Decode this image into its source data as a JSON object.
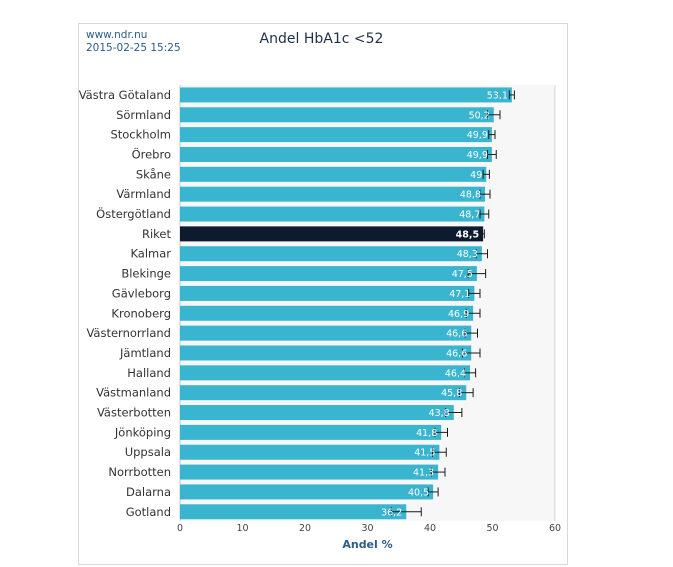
{
  "header": {
    "source": "www.ndr.nu",
    "date": "2015-02-25 15:25"
  },
  "colors": {
    "bar": "#3ab5d0",
    "highlight": "#0d1b2e",
    "label_text": "#ffffff",
    "axis_text": "#333333",
    "axis_title": "#2b5d8c",
    "error_bar": "#1a1a1a",
    "plot_background": "#f7f7f7"
  },
  "chart_data": {
    "type": "bar",
    "orientation": "horizontal",
    "title": "Andel HbA1c <52",
    "xlabel": "Andel %",
    "ylabel": "",
    "xlim": [
      0,
      60
    ],
    "ticks": [
      "0",
      "10",
      "20",
      "30",
      "40",
      "50",
      "60"
    ],
    "tick_values": [
      0,
      10,
      20,
      30,
      40,
      50,
      60
    ],
    "grid": false,
    "highlight_category": "Riket",
    "categories": [
      "Västra Götaland",
      "Sörmland",
      "Stockholm",
      "Örebro",
      "Skåne",
      "Värmland",
      "Östergötland",
      "Riket",
      "Kalmar",
      "Blekinge",
      "Gävleborg",
      "Kronoberg",
      "Västernorrland",
      "Jämtland",
      "Halland",
      "Västmanland",
      "Västerbotten",
      "Jönköping",
      "Uppsala",
      "Norrbotten",
      "Dalarna",
      "Gotland"
    ],
    "values": [
      53.1,
      50.2,
      49.9,
      49.9,
      49,
      48.8,
      48.7,
      48.5,
      48.3,
      47.5,
      47.1,
      46.9,
      46.6,
      46.6,
      46.4,
      45.8,
      43.8,
      41.8,
      41.5,
      41.3,
      40.5,
      36.2
    ],
    "value_labels": [
      "53,1",
      "50,2",
      "49,9",
      "49,9",
      "49",
      "48,8",
      "48,7",
      "48,5",
      "48,3",
      "47,5",
      "47,1",
      "46,9",
      "46,6",
      "46,6",
      "46,4",
      "45,8",
      "43,8",
      "41,8",
      "41,5",
      "41,3",
      "40,5",
      "36,2"
    ],
    "error_low": [
      52.7,
      49.2,
      49.4,
      49.2,
      48.5,
      48.0,
      48.0,
      48.3,
      47.4,
      46.1,
      46.2,
      45.8,
      45.6,
      45.2,
      45.5,
      44.7,
      42.5,
      40.8,
      40.4,
      40.2,
      39.7,
      33.8
    ],
    "error_high": [
      53.5,
      51.2,
      50.4,
      50.6,
      49.5,
      49.6,
      49.4,
      48.7,
      49.2,
      48.9,
      48.0,
      48.0,
      47.6,
      48.0,
      47.3,
      46.9,
      45.1,
      42.8,
      42.6,
      42.4,
      41.3,
      38.6
    ]
  }
}
